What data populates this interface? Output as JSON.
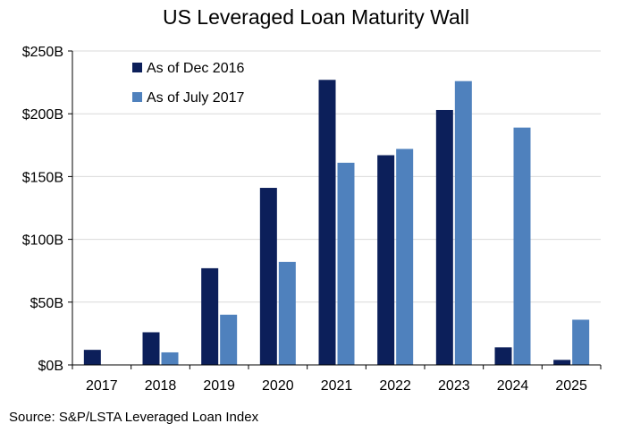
{
  "chart_data": {
    "type": "bar",
    "title": "US Leveraged Loan Maturity Wall",
    "xlabel": "",
    "ylabel": "",
    "categories": [
      "2017",
      "2018",
      "2019",
      "2020",
      "2021",
      "2022",
      "2023",
      "2024",
      "2025"
    ],
    "series": [
      {
        "name": "As of Dec 2016",
        "values": [
          12,
          26,
          77,
          141,
          227,
          167,
          203,
          14,
          4
        ]
      },
      {
        "name": "As of July 2017",
        "values": [
          0,
          10,
          40,
          82,
          161,
          172,
          226,
          189,
          36
        ]
      }
    ],
    "ylim": [
      0,
      250
    ],
    "yticks": [
      0,
      50,
      100,
      150,
      200,
      250
    ],
    "ytick_labels": [
      "$0B",
      "$50B",
      "$100B",
      "$150B",
      "$200B",
      "$250B"
    ],
    "grid": true,
    "legend_position": "top-left",
    "colors": {
      "series1": "#0c1f5a",
      "series2": "#4f81bd",
      "grid": "#d9d9d9",
      "axis": "#000000"
    }
  },
  "source": "Source:  S&P/LSTA  Leveraged Loan Index"
}
